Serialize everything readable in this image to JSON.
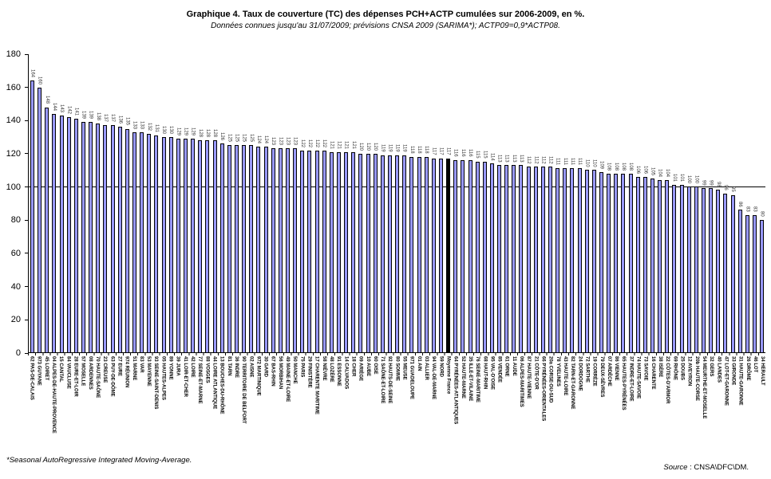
{
  "header": {
    "title": "Graphique 4. Taux de couverture (TC) des dépenses PCH+ACTP cumulées sur 2006-2009, en %.",
    "subtitle": "Données connues jusqu'au 31/07/2009; prévisions CNSA 2009 (SARIMA*); ACTP09=0,9*ACTP08."
  },
  "footer": {
    "footnote": "*Seasonal AutoRegressive Integrated Moving-Average.",
    "source_label": "Source",
    "source_text": " : CNSA\\DFC\\DM."
  },
  "chart_data": {
    "type": "bar",
    "title": "Graphique 4. Taux de couverture (TC) des dépenses PCH+ACTP cumulées sur 2006-2009, en %.",
    "xlabel": "",
    "ylabel": "",
    "ylim": [
      0,
      180
    ],
    "yticks": [
      0,
      20,
      40,
      60,
      80,
      100,
      120,
      140,
      160,
      180
    ],
    "reference_line": 100,
    "grid": false,
    "legend": false,
    "bar_color": "#9999FF",
    "bar_border_color": "#000000",
    "highlight_color": "#000000",
    "highlight_category": "Moyenne France",
    "categories": [
      "62 PAS-DE-CALAIS",
      "973 GUYANE",
      "45 LOIRET",
      "04 ALPES-DE-HAUTE-PROVENCE",
      "15 CANTAL",
      "84 VAUCLUSE",
      "28 EURE-ET-LOIR",
      "57 MOSELLE",
      "08 ARDENNES",
      "70 HAUTE-SAÔNE",
      "23 CREUSE",
      "63 PUY-DE-DÔME",
      "27 EURE",
      "974 RÉUNION",
      "51 MARNE",
      "83 VAR",
      "53 MAYENNE",
      "93 SEINE-SAINT-DENIS",
      "05 HAUTES-ALPES",
      "89 YONNE",
      "39 JURA",
      "41 LOIR-ET-CHER",
      "42 LOIRE",
      "77 SEINE-ET-MARNE",
      "88 VOSGES",
      "44 LOIRE ATLANTIQUE",
      "13 BOUCHES-DU-RHÔNE",
      "81 TARN",
      "36 INDRE",
      "90 TERRITOIRE DE BELFORT",
      "02 AISNE",
      "972 MARTINIQUE",
      "30 GARD",
      "67 BAS-RHIN",
      "56 MORBIHAN",
      "49 MAINE-ET-LOIRE",
      "50 MANCHE",
      "75 PARIS",
      "29 FINISTÈRE",
      "17 CHARENTE MARITIME",
      "58 NIÈVRE",
      "48 LOZÈRE",
      "91 ESSONNE",
      "14 CALVADOS",
      "18 CHER",
      "09 ARIÈGE",
      "10 AUBE",
      "60 OISE",
      "71 SAÔNE-ET-LOIRE",
      "92 HAUTS-DE-SEINE",
      "80 SOMME",
      "55 MEUSE",
      "971 GUADELOUPE",
      "01 AIN",
      "03 ALLIER",
      "94 VAL-DE-MARNE",
      "59 NORD",
      "Moyenne France",
      "64 PYRÉNÉES-ATLANTIQUES",
      "52 HAUTE-MARNE",
      "35 ILLE-ET-VILAINE",
      "76 SEINE-MARITIME",
      "68 HAUT-RHIN",
      "95 VAL-D'OISE",
      "85 VENDÉE",
      "61 ORNE",
      "11 AUDE",
      "06 ALPES-MARITIMES",
      "87 HAUTE-VIENNE",
      "21 CÔTE-D'OR",
      "66 PYRÉNÉES-ORIENTALES",
      "20a CORSE-DU-SUD",
      "78 YVELINES",
      "43 HAUTE-LOIRE",
      "82 TARN-ET-GARONNE",
      "24 DORDOGNE",
      "72 SARTHE",
      "19 CORRÈZE",
      "79 DEUX-SÈVRES",
      "07 ARDÈCHE",
      "86 VIENNE",
      "65 HAUTES-PYRÉNÉES",
      "37 INDRE-ET-LOIRE",
      "74 HAUTE-SAVOIE",
      "73 SAVOIE",
      "16 CHARENTE",
      "38 ISÈRE",
      "22 CÔTES-D'ARMOR",
      "69 RHÔNE",
      "25 DOUBS",
      "12 AVEYRON",
      "20b HAUTE-CORSE",
      "54 MEURTHE-ET-MOSELLE",
      "32 GERS",
      "40 LANDES",
      "47 LOT-ET-GARONNE",
      "33 GIRONDE",
      "31 HAUTE-GARONNE",
      "26 DRÔME",
      "46 LOT",
      "34 HÉRAULT"
    ],
    "values": [
      164,
      160,
      148,
      144,
      143,
      142,
      141,
      139,
      139,
      138,
      137,
      137,
      136,
      135,
      133,
      133,
      132,
      131,
      130,
      130,
      129,
      129,
      129,
      128,
      128,
      128,
      126,
      125,
      125,
      125,
      125,
      124,
      124,
      123,
      123,
      123,
      123,
      122,
      122,
      122,
      122,
      121,
      121,
      121,
      121,
      120,
      120,
      120,
      119,
      119,
      119,
      119,
      118,
      118,
      118,
      117,
      117,
      117,
      116,
      116,
      116,
      115,
      115,
      114,
      113,
      113,
      113,
      113,
      112,
      112,
      112,
      112,
      111,
      111,
      111,
      111,
      110,
      110,
      109,
      108,
      108,
      108,
      108,
      106,
      106,
      105,
      104,
      104,
      101,
      101,
      100,
      100,
      99,
      99,
      98,
      96,
      95,
      86,
      83,
      83,
      80
    ]
  }
}
